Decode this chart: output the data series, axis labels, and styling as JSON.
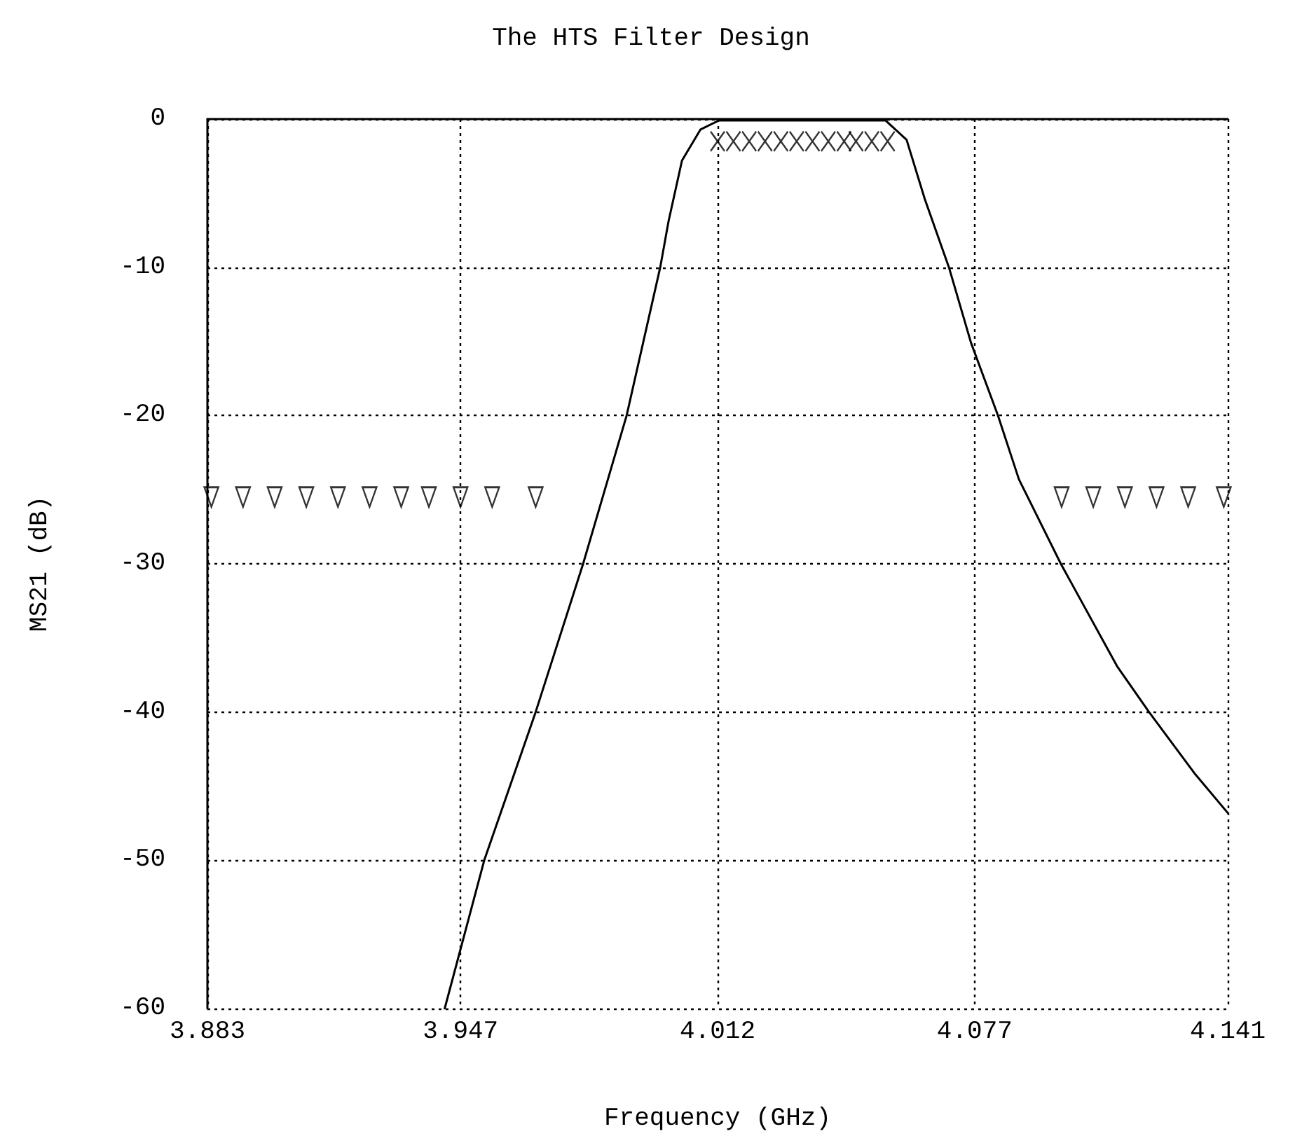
{
  "chart_data": {
    "type": "line",
    "title": "The HTS Filter Design",
    "xlabel": "Frequency (GHz)",
    "ylabel": "MS21 (dB)",
    "xlim": [
      3.883,
      4.141
    ],
    "xticks": [
      3.883,
      3.947,
      4.012,
      4.077,
      4.141
    ],
    "ylim": [
      -60,
      0
    ],
    "yticks": [
      -60,
      -50,
      -40,
      -30,
      -20,
      -10,
      0
    ],
    "grid": true,
    "series": [
      {
        "color": "#000000",
        "marker": "none",
        "line_style": "solid",
        "x": [
          3.943,
          3.953,
          3.966,
          3.978,
          3.989,
          3.9975,
          3.9996,
          4.003,
          4.0077,
          4.0123,
          4.0545,
          4.0598,
          4.0644,
          4.0705,
          4.0761,
          4.0829,
          4.0882,
          4.0988,
          4.113,
          4.1211,
          4.1328,
          4.141
        ],
        "values": [
          -60,
          -50,
          -40,
          -30,
          -20,
          -10,
          -6.9,
          -2.8,
          -0.7,
          -0.1,
          -0.1,
          -1.4,
          -5.4,
          -10,
          -15.1,
          -20,
          -24.3,
          -30,
          -36.9,
          -40,
          -44.2,
          -46.8
        ]
      },
      {
        "type": "scatter",
        "color": "#000000",
        "marker": "triangle",
        "x": [
          3.884,
          3.892,
          3.9,
          3.908,
          3.916,
          3.924,
          3.932,
          3.939,
          3.947,
          3.955,
          3.966,
          4.099,
          4.107,
          4.115,
          4.123,
          4.131,
          4.14
        ],
        "values": [
          -25.5,
          -25.5,
          -25.5,
          -25.5,
          -25.5,
          -25.5,
          -25.5,
          -25.5,
          -25.5,
          -25.5,
          -25.5,
          -25.5,
          -25.5,
          -25.5,
          -25.5,
          -25.5,
          -25.5
        ]
      },
      {
        "type": "scatter",
        "color": "#000000",
        "marker": "cross",
        "x": [
          4.012,
          4.016,
          4.02,
          4.024,
          4.028,
          4.032,
          4.036,
          4.04,
          4.044,
          4.047,
          4.051,
          4.055
        ],
        "values": [
          -1.5,
          -1.5,
          -1.5,
          -1.5,
          -1.5,
          -1.5,
          -1.5,
          -1.5,
          -1.5,
          -1.5,
          -1.5,
          -1.5
        ]
      }
    ]
  }
}
